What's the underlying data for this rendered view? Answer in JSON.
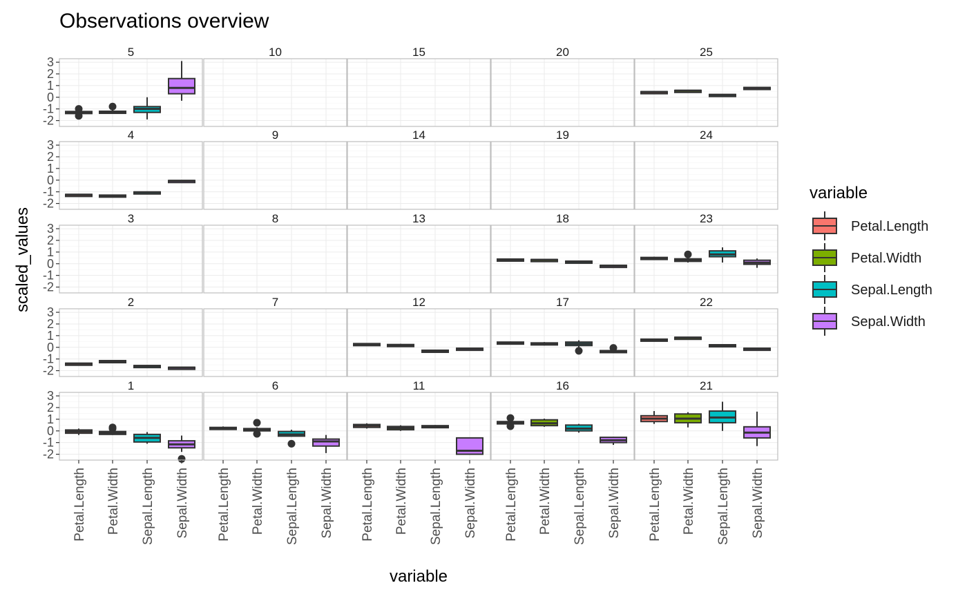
{
  "chart_data": {
    "type": "boxplot",
    "title": "Observations overview",
    "xlabel": "variable",
    "ylabel": "scaled_values",
    "ylim": [
      -2.5,
      3.3
    ],
    "y_ticks": [
      3,
      2,
      1,
      0,
      -1,
      -2
    ],
    "categories": [
      "Petal.Length",
      "Petal.Width",
      "Sepal.Length",
      "Sepal.Width"
    ],
    "colors": {
      "Petal.Length": "#F8766D",
      "Petal.Width": "#7CAE00",
      "Sepal.Length": "#00BFC4",
      "Sepal.Width": "#C77CFF"
    },
    "legend": {
      "title": "variable",
      "placement": "right",
      "items": [
        "Petal.Length",
        "Petal.Width",
        "Sepal.Length",
        "Sepal.Width"
      ]
    },
    "grid": true,
    "facet_layout": [
      [
        5,
        10,
        15,
        20,
        25
      ],
      [
        4,
        9,
        14,
        19,
        24
      ],
      [
        3,
        8,
        13,
        18,
        23
      ],
      [
        2,
        7,
        12,
        17,
        22
      ],
      [
        1,
        6,
        11,
        16,
        21
      ]
    ],
    "panels": [
      {
        "facet": "5",
        "boxes": [
          {
            "variable": "Petal.Length",
            "min": -1.45,
            "q1": -1.38,
            "median": -1.3,
            "q3": -1.22,
            "max": -1.15,
            "outliers": [
              -1.0,
              -1.6
            ]
          },
          {
            "variable": "Petal.Width",
            "min": -1.4,
            "q1": -1.35,
            "median": -1.3,
            "q3": -1.2,
            "max": -1.1,
            "outliers": [
              -0.8
            ]
          },
          {
            "variable": "Sepal.Length",
            "min": -1.9,
            "q1": -1.3,
            "median": -1.0,
            "q3": -0.8,
            "max": 0.0,
            "outliers": []
          },
          {
            "variable": "Sepal.Width",
            "min": -0.3,
            "q1": 0.3,
            "median": 0.8,
            "q3": 1.6,
            "max": 3.1,
            "outliers": []
          }
        ]
      },
      {
        "facet": "10",
        "boxes": []
      },
      {
        "facet": "15",
        "boxes": []
      },
      {
        "facet": "20",
        "boxes": []
      },
      {
        "facet": "25",
        "boxes": [
          {
            "variable": "Petal.Length",
            "min": 0.38,
            "q1": 0.42,
            "median": 0.45,
            "q3": 0.48,
            "max": 0.52,
            "outliers": []
          },
          {
            "variable": "Petal.Width",
            "min": 0.5,
            "q1": 0.53,
            "median": 0.56,
            "q3": 0.59,
            "max": 0.62,
            "outliers": []
          },
          {
            "variable": "Sepal.Length",
            "min": 0.12,
            "q1": 0.16,
            "median": 0.2,
            "q3": 0.24,
            "max": 0.28,
            "outliers": []
          },
          {
            "variable": "Sepal.Width",
            "min": 0.72,
            "q1": 0.76,
            "median": 0.8,
            "q3": 0.84,
            "max": 0.88,
            "outliers": []
          }
        ]
      },
      {
        "facet": "4",
        "boxes": [
          {
            "variable": "Petal.Length",
            "min": -1.3,
            "q1": -1.28,
            "median": -1.25,
            "q3": -1.22,
            "max": -1.2,
            "outliers": []
          },
          {
            "variable": "Petal.Width",
            "min": -1.38,
            "q1": -1.35,
            "median": -1.32,
            "q3": -1.28,
            "max": -1.25,
            "outliers": []
          },
          {
            "variable": "Sepal.Length",
            "min": -1.1,
            "q1": -1.07,
            "median": -1.04,
            "q3": -1.01,
            "max": -0.98,
            "outliers": []
          },
          {
            "variable": "Sepal.Width",
            "min": -0.12,
            "q1": -0.09,
            "median": -0.06,
            "q3": -0.03,
            "max": 0.0,
            "outliers": []
          }
        ]
      },
      {
        "facet": "9",
        "boxes": []
      },
      {
        "facet": "14",
        "boxes": []
      },
      {
        "facet": "19",
        "boxes": []
      },
      {
        "facet": "24",
        "boxes": []
      },
      {
        "facet": "3",
        "boxes": []
      },
      {
        "facet": "8",
        "boxes": []
      },
      {
        "facet": "13",
        "boxes": []
      },
      {
        "facet": "18",
        "boxes": [
          {
            "variable": "Petal.Length",
            "min": 0.3,
            "q1": 0.34,
            "median": 0.37,
            "q3": 0.4,
            "max": 0.43,
            "outliers": []
          },
          {
            "variable": "Petal.Width",
            "min": 0.26,
            "q1": 0.3,
            "median": 0.33,
            "q3": 0.36,
            "max": 0.39,
            "outliers": []
          },
          {
            "variable": "Sepal.Length",
            "min": 0.12,
            "q1": 0.16,
            "median": 0.19,
            "q3": 0.22,
            "max": 0.25,
            "outliers": []
          },
          {
            "variable": "Sepal.Width",
            "min": -0.25,
            "q1": -0.2,
            "median": -0.17,
            "q3": -0.14,
            "max": -0.1,
            "outliers": []
          }
        ]
      },
      {
        "facet": "23",
        "boxes": [
          {
            "variable": "Petal.Length",
            "min": 0.35,
            "q1": 0.4,
            "median": 0.47,
            "q3": 0.54,
            "max": 0.6,
            "outliers": []
          },
          {
            "variable": "Petal.Width",
            "min": 0.1,
            "q1": 0.2,
            "median": 0.3,
            "q3": 0.42,
            "max": 0.55,
            "outliers": [
              0.8
            ]
          },
          {
            "variable": "Sepal.Length",
            "min": 0.1,
            "q1": 0.6,
            "median": 0.8,
            "q3": 1.1,
            "max": 1.4,
            "outliers": []
          },
          {
            "variable": "Sepal.Width",
            "min": -0.35,
            "q1": -0.05,
            "median": 0.1,
            "q3": 0.3,
            "max": 0.45,
            "outliers": []
          }
        ]
      },
      {
        "facet": "2",
        "boxes": [
          {
            "variable": "Petal.Length",
            "min": -1.48,
            "q1": -1.44,
            "median": -1.4,
            "q3": -1.36,
            "max": -1.32,
            "outliers": []
          },
          {
            "variable": "Petal.Width",
            "min": -1.26,
            "q1": -1.22,
            "median": -1.18,
            "q3": -1.14,
            "max": -1.1,
            "outliers": []
          },
          {
            "variable": "Sepal.Length",
            "min": -1.68,
            "q1": -1.64,
            "median": -1.6,
            "q3": -1.56,
            "max": -1.52,
            "outliers": []
          },
          {
            "variable": "Sepal.Width",
            "min": -1.8,
            "q1": -1.77,
            "median": -1.74,
            "q3": -1.71,
            "max": -1.68,
            "outliers": []
          }
        ]
      },
      {
        "facet": "7",
        "boxes": []
      },
      {
        "facet": "12",
        "boxes": [
          {
            "variable": "Petal.Length",
            "min": 0.2,
            "q1": 0.24,
            "median": 0.28,
            "q3": 0.32,
            "max": 0.36,
            "outliers": []
          },
          {
            "variable": "Petal.Width",
            "min": 0.08,
            "q1": 0.13,
            "median": 0.18,
            "q3": 0.24,
            "max": 0.3,
            "outliers": []
          },
          {
            "variable": "Sepal.Length",
            "min": -0.45,
            "q1": -0.4,
            "median": -0.32,
            "q3": -0.25,
            "max": -0.2,
            "outliers": []
          },
          {
            "variable": "Sepal.Width",
            "min": -0.2,
            "q1": -0.16,
            "median": -0.12,
            "q3": -0.08,
            "max": -0.04,
            "outliers": []
          }
        ]
      },
      {
        "facet": "17",
        "boxes": [
          {
            "variable": "Petal.Length",
            "min": 0.3,
            "q1": 0.35,
            "median": 0.4,
            "q3": 0.45,
            "max": 0.5,
            "outliers": []
          },
          {
            "variable": "Petal.Width",
            "min": 0.15,
            "q1": 0.22,
            "median": 0.3,
            "q3": 0.38,
            "max": 0.45,
            "outliers": []
          },
          {
            "variable": "Sepal.Length",
            "min": 0.0,
            "q1": 0.15,
            "median": 0.3,
            "q3": 0.45,
            "max": 0.6,
            "outliers": [
              -0.3
            ]
          },
          {
            "variable": "Sepal.Width",
            "min": -0.5,
            "q1": -0.42,
            "median": -0.35,
            "q3": -0.28,
            "max": -0.2,
            "outliers": [
              -0.05
            ]
          }
        ]
      },
      {
        "facet": "22",
        "boxes": [
          {
            "variable": "Petal.Length",
            "min": 0.6,
            "q1": 0.63,
            "median": 0.66,
            "q3": 0.7,
            "max": 0.73,
            "outliers": []
          },
          {
            "variable": "Petal.Width",
            "min": 0.76,
            "q1": 0.8,
            "median": 0.83,
            "q3": 0.86,
            "max": 0.9,
            "outliers": []
          },
          {
            "variable": "Sepal.Length",
            "min": 0.1,
            "q1": 0.14,
            "median": 0.18,
            "q3": 0.22,
            "max": 0.26,
            "outliers": []
          },
          {
            "variable": "Sepal.Width",
            "min": -0.2,
            "q1": -0.16,
            "median": -0.12,
            "q3": -0.08,
            "max": -0.04,
            "outliers": []
          }
        ]
      },
      {
        "facet": "1",
        "boxes": [
          {
            "variable": "Petal.Length",
            "min": -0.35,
            "q1": -0.2,
            "median": -0.05,
            "q3": 0.08,
            "max": 0.2,
            "outliers": []
          },
          {
            "variable": "Petal.Width",
            "min": -0.35,
            "q1": -0.3,
            "median": -0.18,
            "q3": -0.05,
            "max": 0.1,
            "outliers": [
              0.2,
              0.3
            ]
          },
          {
            "variable": "Sepal.Length",
            "min": -1.1,
            "q1": -0.95,
            "median": -0.6,
            "q3": -0.3,
            "max": -0.1,
            "outliers": []
          },
          {
            "variable": "Sepal.Width",
            "min": -1.8,
            "q1": -1.45,
            "median": -1.15,
            "q3": -0.85,
            "max": -0.4,
            "outliers": [
              -2.4
            ]
          }
        ]
      },
      {
        "facet": "6",
        "boxes": [
          {
            "variable": "Petal.Length",
            "min": 0.1,
            "q1": 0.18,
            "median": 0.25,
            "q3": 0.3,
            "max": 0.38,
            "outliers": []
          },
          {
            "variable": "Petal.Width",
            "min": -0.1,
            "q1": 0.0,
            "median": 0.1,
            "q3": 0.2,
            "max": 0.3,
            "outliers": [
              0.7,
              -0.25
            ]
          },
          {
            "variable": "Sepal.Length",
            "min": -0.5,
            "q1": -0.45,
            "median": -0.3,
            "q3": -0.05,
            "max": 0.1,
            "outliers": [
              -1.1
            ]
          },
          {
            "variable": "Sepal.Width",
            "min": -1.9,
            "q1": -1.3,
            "median": -0.9,
            "q3": -0.7,
            "max": -0.35,
            "outliers": []
          }
        ]
      },
      {
        "facet": "11",
        "boxes": [
          {
            "variable": "Petal.Length",
            "min": 0.2,
            "q1": 0.3,
            "median": 0.45,
            "q3": 0.55,
            "max": 0.65,
            "outliers": []
          },
          {
            "variable": "Petal.Width",
            "min": 0.0,
            "q1": 0.1,
            "median": 0.25,
            "q3": 0.38,
            "max": 0.48,
            "outliers": []
          },
          {
            "variable": "Sepal.Length",
            "min": 0.25,
            "q1": 0.3,
            "median": 0.38,
            "q3": 0.45,
            "max": 0.5,
            "outliers": []
          },
          {
            "variable": "Sepal.Width",
            "min": -2.0,
            "q1": -2.0,
            "median": -1.7,
            "q3": -0.6,
            "max": -0.6,
            "outliers": []
          }
        ]
      },
      {
        "facet": "16",
        "boxes": [
          {
            "variable": "Petal.Length",
            "min": 0.55,
            "q1": 0.6,
            "median": 0.7,
            "q3": 0.8,
            "max": 0.9,
            "outliers": [
              1.1,
              0.4
            ]
          },
          {
            "variable": "Petal.Width",
            "min": 0.35,
            "q1": 0.45,
            "median": 0.65,
            "q3": 0.95,
            "max": 1.05,
            "outliers": []
          },
          {
            "variable": "Sepal.Length",
            "min": -0.15,
            "q1": 0.0,
            "median": 0.2,
            "q3": 0.5,
            "max": 0.6,
            "outliers": []
          },
          {
            "variable": "Sepal.Width",
            "min": -1.2,
            "q1": -1.0,
            "median": -0.8,
            "q3": -0.55,
            "max": -0.5,
            "outliers": []
          }
        ]
      },
      {
        "facet": "21",
        "boxes": [
          {
            "variable": "Petal.Length",
            "min": 0.6,
            "q1": 0.8,
            "median": 1.05,
            "q3": 1.3,
            "max": 1.7,
            "outliers": []
          },
          {
            "variable": "Petal.Width",
            "min": 0.3,
            "q1": 0.7,
            "median": 1.05,
            "q3": 1.45,
            "max": 1.6,
            "outliers": []
          },
          {
            "variable": "Sepal.Length",
            "min": 0.0,
            "q1": 0.7,
            "median": 1.15,
            "q3": 1.7,
            "max": 2.5,
            "outliers": []
          },
          {
            "variable": "Sepal.Width",
            "min": -1.3,
            "q1": -0.6,
            "median": -0.15,
            "q3": 0.35,
            "max": 1.65,
            "outliers": []
          }
        ]
      }
    ]
  }
}
